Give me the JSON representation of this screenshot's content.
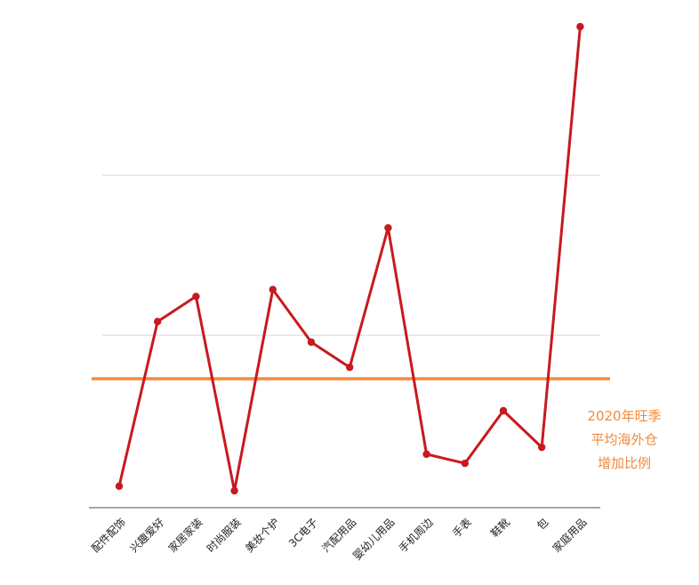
{
  "colors": {
    "line": "#c8191e",
    "reference": "#f28a3c",
    "grid": "#d9d9d9",
    "axis": "#8a8a8a",
    "text": "#222222"
  },
  "chart_data": {
    "type": "line",
    "title": "",
    "xlabel": "",
    "ylabel": "",
    "categories": [
      "配件配饰",
      "兴趣爱好",
      "家居家装",
      "时尚服装",
      "美妆个护",
      "3C电子",
      "汽配用品",
      "婴幼儿用品",
      "手机周边",
      "手表",
      "鞋靴",
      "包",
      "家庭用品"
    ],
    "series": [
      {
        "values": [
          0.04,
          0.76,
          0.87,
          0.02,
          0.9,
          0.67,
          0.56,
          1.17,
          0.18,
          0.14,
          0.37,
          0.21,
          2.05
        ]
      }
    ],
    "ylim": [
      -0.05,
      2.05
    ],
    "gridlines": [
      0.7,
      1.4
    ],
    "y_tick_labels_shown": false,
    "grid": true,
    "reference_line": {
      "value": 0.51,
      "label_lines": [
        "2020年旺季",
        "平均海外仓",
        "增加比例"
      ]
    }
  }
}
